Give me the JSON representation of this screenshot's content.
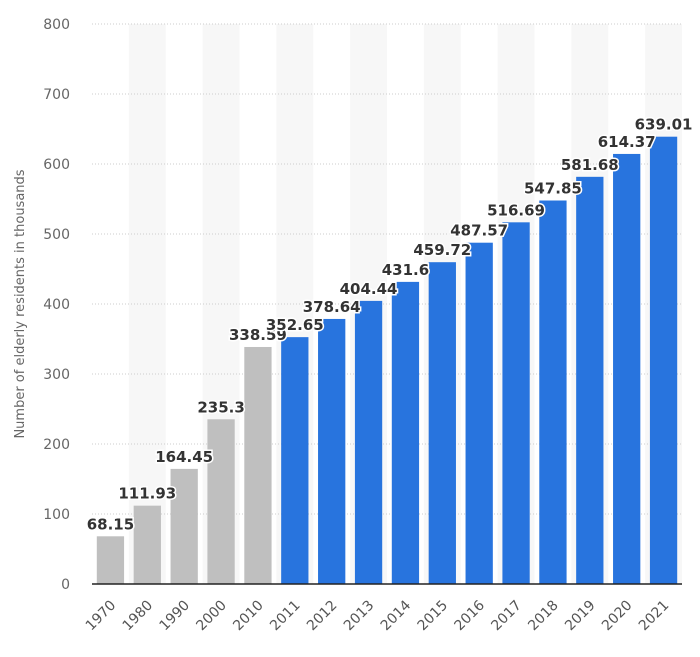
{
  "chart_data": {
    "type": "bar",
    "title": "",
    "xlabel": "",
    "ylabel": "Number of elderly residents in thousands",
    "ylim": [
      0,
      800
    ],
    "yticks": [
      0,
      100,
      200,
      300,
      400,
      500,
      600,
      700,
      800
    ],
    "grid": true,
    "categories": [
      "1970",
      "1980",
      "1990",
      "2000",
      "2010",
      "2011",
      "2012",
      "2013",
      "2014",
      "2015",
      "2016",
      "2017",
      "2018",
      "2019",
      "2020",
      "2021"
    ],
    "values": [
      68.15,
      111.93,
      164.45,
      235.3,
      338.59,
      352.65,
      378.64,
      404.44,
      431.6,
      459.72,
      487.57,
      516.69,
      547.85,
      581.68,
      614.37,
      639.01
    ],
    "labels": [
      "68.15",
      "111.93",
      "164.45",
      "235.3",
      "338.59",
      "352.65",
      "378.64",
      "404.44",
      "431.6",
      "459.72",
      "487.57",
      "516.69",
      "547.85",
      "581.68",
      "614.37",
      "639.01"
    ],
    "bar_colors": [
      "#bfbfbf",
      "#bfbfbf",
      "#bfbfbf",
      "#bfbfbf",
      "#bfbfbf",
      "#2874de",
      "#2874de",
      "#2874de",
      "#2874de",
      "#2874de",
      "#2874de",
      "#2874de",
      "#2874de",
      "#2874de",
      "#2874de",
      "#2874de"
    ],
    "colors": {
      "historic": "#bfbfbf",
      "annual": "#2874de",
      "grid": "#cccccc",
      "axis": "#222222",
      "band": "#f7f7f7"
    }
  }
}
